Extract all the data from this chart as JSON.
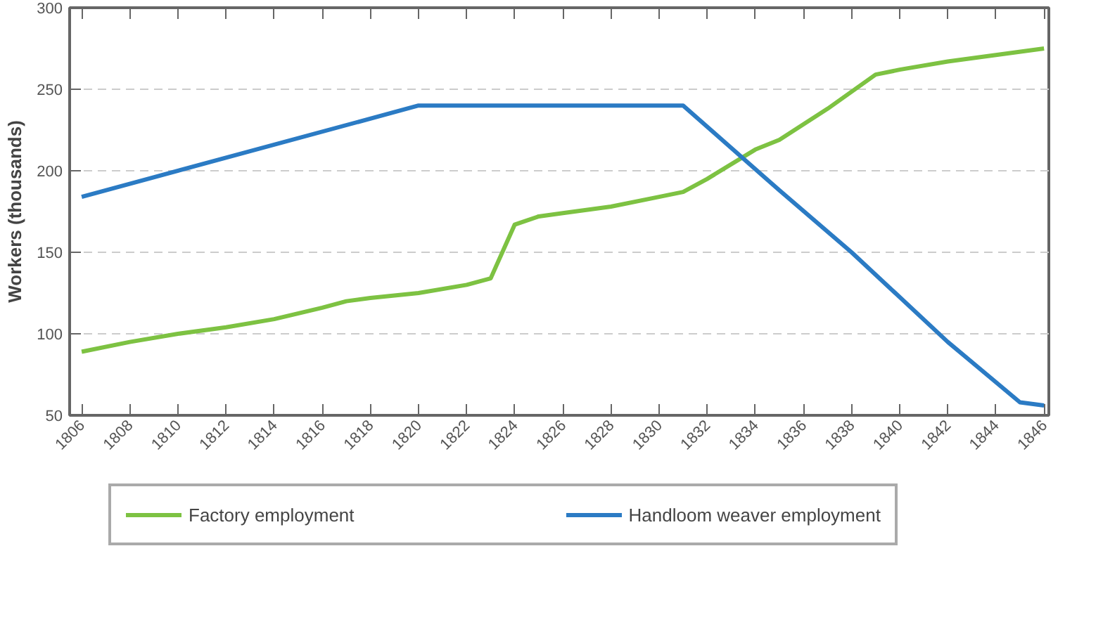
{
  "chart_data": {
    "type": "line",
    "ylabel": "Workers (thousands)",
    "xlim": [
      1805.5,
      1846.2
    ],
    "xticks": [
      1806,
      1808,
      1810,
      1812,
      1814,
      1816,
      1818,
      1820,
      1822,
      1824,
      1826,
      1828,
      1830,
      1832,
      1834,
      1836,
      1838,
      1840,
      1842,
      1844,
      1846
    ],
    "ylim": [
      50,
      300
    ],
    "yticks": [
      50,
      100,
      150,
      200,
      250,
      300
    ],
    "grid": "y",
    "legend": "bottom",
    "line_style": "solid",
    "marker": "none",
    "series": [
      {
        "name": "Factory employment",
        "color": "#7dc242",
        "x": [
          1806,
          1808,
          1810,
          1812,
          1814,
          1816,
          1817,
          1818,
          1820,
          1822,
          1823,
          1824,
          1825,
          1826,
          1828,
          1830,
          1831,
          1832,
          1834,
          1835,
          1837,
          1839,
          1840,
          1842,
          1844,
          1846
        ],
        "values": [
          89,
          95,
          100,
          104,
          109,
          116,
          120,
          122,
          125,
          130,
          134,
          167,
          172,
          174,
          178,
          184,
          187,
          195,
          213,
          219,
          238,
          259,
          262,
          267,
          271,
          275
        ]
      },
      {
        "name": "Handloom weaver employment",
        "color": "#2b7bc4",
        "x": [
          1806,
          1820,
          1831,
          1835,
          1838,
          1842,
          1845,
          1846
        ],
        "values": [
          184,
          240,
          240,
          188,
          150,
          95,
          58,
          56
        ]
      }
    ]
  }
}
